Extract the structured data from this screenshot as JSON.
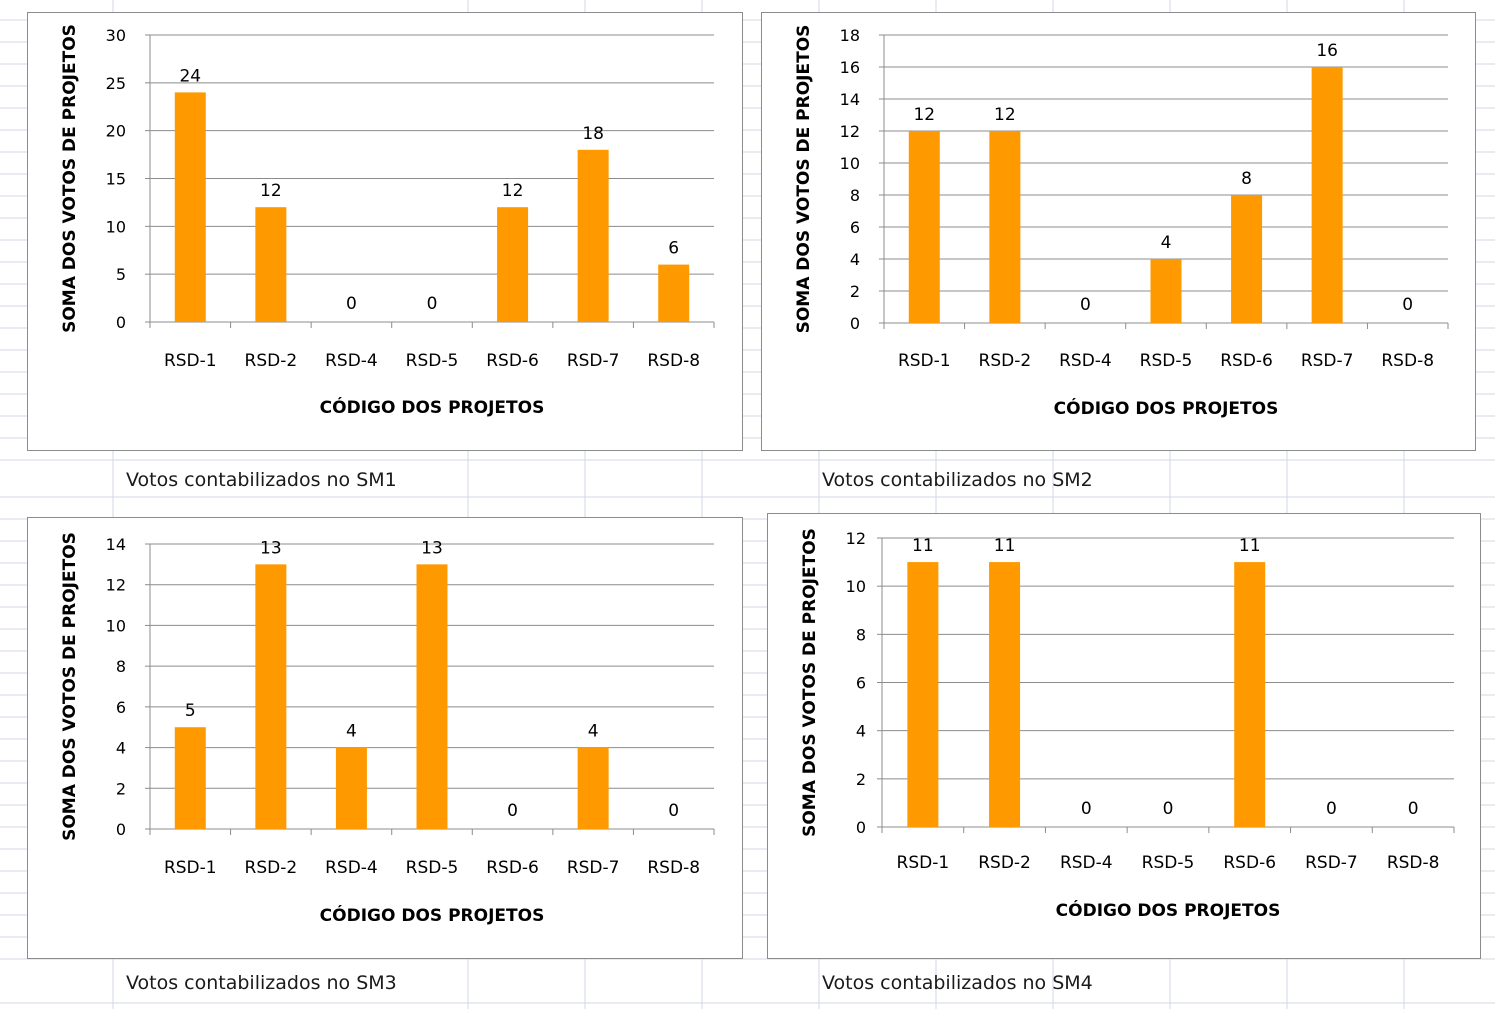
{
  "colors": {
    "bar": "#ff9900",
    "gridline": "#8c8c8c",
    "axis": "#8c8c8c",
    "sheet_grid": "#d0d7e5"
  },
  "captions": {
    "sm1": "Votos contabilizados no SM1",
    "sm2": "Votos contabilizados no SM2",
    "sm3": "Votos contabilizados no SM3",
    "sm4": "Votos contabilizados no SM4"
  },
  "chart_data": [
    {
      "type": "bar",
      "categories": [
        "RSD-1",
        "RSD-2",
        "RSD-4",
        "RSD-5",
        "RSD-6",
        "RSD-7",
        "RSD-8"
      ],
      "values": [
        24,
        12,
        0,
        0,
        12,
        18,
        6
      ],
      "xlabel": "CÓDIGO DOS PROJETOS",
      "ylabel": "SOMA DOS VOTOS DE PROJETOS",
      "ylim": [
        0,
        30
      ],
      "yticks": [
        0,
        5,
        10,
        15,
        20,
        25,
        30
      ],
      "grid": true,
      "legend": false,
      "data_labels": true
    },
    {
      "type": "bar",
      "categories": [
        "RSD-1",
        "RSD-2",
        "RSD-4",
        "RSD-5",
        "RSD-6",
        "RSD-7",
        "RSD-8"
      ],
      "values": [
        12,
        12,
        0,
        4,
        8,
        16,
        0
      ],
      "xlabel": "CÓDIGO DOS PROJETOS",
      "ylabel": "SOMA DOS VOTOS DE PROJETOS",
      "ylim": [
        0,
        18
      ],
      "yticks": [
        0,
        2,
        4,
        6,
        8,
        10,
        12,
        14,
        16,
        18
      ],
      "grid": true,
      "legend": false,
      "data_labels": true
    },
    {
      "type": "bar",
      "categories": [
        "RSD-1",
        "RSD-2",
        "RSD-4",
        "RSD-5",
        "RSD-6",
        "RSD-7",
        "RSD-8"
      ],
      "values": [
        5,
        13,
        4,
        13,
        0,
        4,
        0
      ],
      "xlabel": "CÓDIGO DOS PROJETOS",
      "ylabel": "SOMA DOS VOTOS DE PROJETOS",
      "ylim": [
        0,
        14
      ],
      "yticks": [
        0,
        2,
        4,
        6,
        8,
        10,
        12,
        14
      ],
      "grid": true,
      "legend": false,
      "data_labels": true
    },
    {
      "type": "bar",
      "categories": [
        "RSD-1",
        "RSD-2",
        "RSD-4",
        "RSD-5",
        "RSD-6",
        "RSD-7",
        "RSD-8"
      ],
      "values": [
        11,
        11,
        0,
        0,
        11,
        0,
        0
      ],
      "xlabel": "CÓDIGO DOS PROJETOS",
      "ylabel": "SOMA DOS VOTOS DE PROJETOS",
      "ylim": [
        0,
        12
      ],
      "yticks": [
        0,
        2,
        4,
        6,
        8,
        10,
        12
      ],
      "grid": true,
      "legend": false,
      "data_labels": true
    }
  ]
}
